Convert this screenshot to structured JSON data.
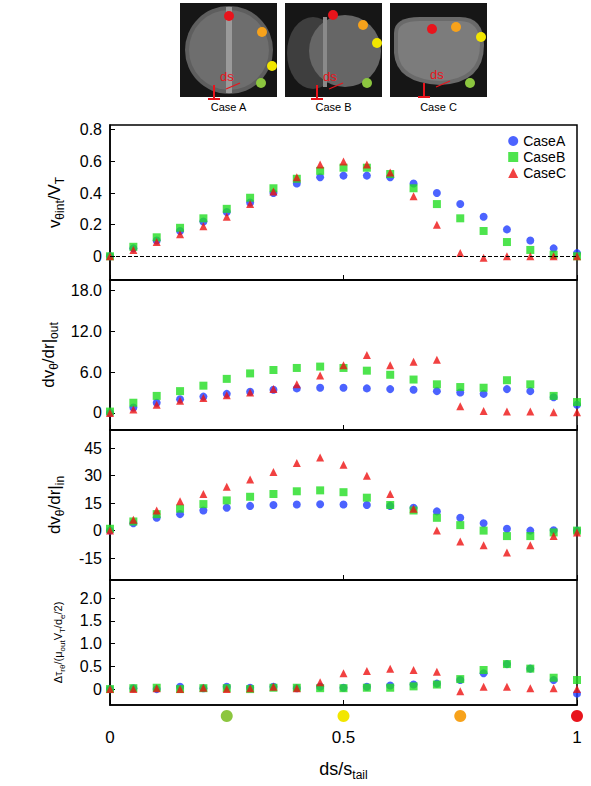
{
  "images": [
    {
      "caption": "Case A",
      "label": "ds"
    },
    {
      "caption": "Case B",
      "label": "ds"
    },
    {
      "caption": "Case C",
      "label": "ds"
    }
  ],
  "chart_data": [
    {
      "type": "scatter",
      "ylabel": [
        {
          "text": "v"
        },
        {
          "text": "θint",
          "sub": true
        },
        {
          "text": "/V"
        },
        {
          "text": "T",
          "sub": true
        }
      ],
      "x": [
        0,
        0.05,
        0.1,
        0.15,
        0.2,
        0.25,
        0.3,
        0.35,
        0.4,
        0.45,
        0.5,
        0.55,
        0.6,
        0.65,
        0.7,
        0.75,
        0.8,
        0.85,
        0.9,
        0.95,
        1
      ],
      "xlim": [
        0,
        1
      ],
      "xticks": [
        0,
        0.5,
        1
      ],
      "ylim": [
        -0.15,
        0.83
      ],
      "yticks": [
        0,
        0.2,
        0.4,
        0.6,
        0.8
      ],
      "hlines": [
        0
      ],
      "grid": false,
      "legend": "upper right",
      "tick_labels": "y",
      "series": [
        {
          "name": "CaseA",
          "color": "#1f3cff",
          "marker": "circle",
          "values": [
            0,
            0.05,
            0.1,
            0.16,
            0.22,
            0.28,
            0.34,
            0.4,
            0.46,
            0.5,
            0.51,
            0.51,
            0.5,
            0.46,
            0.4,
            0.33,
            0.25,
            0.17,
            0.1,
            0.05,
            0.02
          ]
        },
        {
          "name": "CaseB",
          "color": "#22dd22",
          "marker": "square",
          "values": [
            0,
            0.06,
            0.12,
            0.18,
            0.24,
            0.3,
            0.37,
            0.43,
            0.49,
            0.54,
            0.56,
            0.56,
            0.52,
            0.43,
            0.33,
            0.24,
            0.16,
            0.09,
            0.04,
            0.01,
            0
          ]
        },
        {
          "name": "CaseC",
          "color": "#ee1111",
          "marker": "triangle",
          "values": [
            0,
            0.04,
            0.09,
            0.14,
            0.19,
            0.25,
            0.33,
            0.41,
            0.5,
            0.58,
            0.6,
            0.58,
            0.53,
            0.38,
            0.2,
            0.02,
            -0.01,
            0,
            0,
            0,
            0
          ]
        }
      ]
    },
    {
      "type": "scatter",
      "ylabel": [
        {
          "text": "dv"
        },
        {
          "text": "θ",
          "sub": true
        },
        {
          "text": "/dr|"
        },
        {
          "text": "out",
          "sub": true
        }
      ],
      "x": [
        0,
        0.05,
        0.1,
        0.15,
        0.2,
        0.25,
        0.3,
        0.35,
        0.4,
        0.45,
        0.5,
        0.55,
        0.6,
        0.65,
        0.7,
        0.75,
        0.8,
        0.85,
        0.9,
        0.95,
        1
      ],
      "xlim": [
        0,
        1
      ],
      "xticks": [
        0,
        0.5,
        1
      ],
      "ylim": [
        -2.5,
        19.5
      ],
      "yticks": [
        0,
        {
          "value": 6,
          "label": "6.0"
        },
        {
          "value": 12,
          "label": "12.0"
        },
        {
          "value": 18,
          "label": "18.0"
        }
      ],
      "grid": false,
      "tick_labels": "y",
      "series": [
        {
          "name": "CaseA",
          "color": "#1f3cff",
          "marker": "circle",
          "values": [
            0,
            0.8,
            1.5,
            2,
            2.4,
            2.8,
            3.1,
            3.4,
            3.6,
            3.7,
            3.7,
            3.6,
            3.5,
            3.4,
            3.2,
            3,
            2.8,
            3.5,
            3.2,
            2.3,
            1.2
          ]
        },
        {
          "name": "CaseB",
          "color": "#22dd22",
          "marker": "square",
          "values": [
            0.2,
            1.5,
            2.5,
            3.2,
            4,
            5,
            5.8,
            6.3,
            6.6,
            6.8,
            6.6,
            6.2,
            5.6,
            4.9,
            4.2,
            3.8,
            3.7,
            4.8,
            4.2,
            2.5,
            1.6
          ]
        },
        {
          "name": "CaseC",
          "color": "#ee1111",
          "marker": "triangle",
          "values": [
            0,
            0.5,
            1.2,
            1.8,
            2.2,
            2.6,
            3,
            3.5,
            4.2,
            5.5,
            7,
            8.5,
            7,
            7.5,
            7.8,
            1,
            0.3,
            0.2,
            0.2,
            0.1,
            0.1
          ]
        }
      ]
    },
    {
      "type": "scatter",
      "ylabel": [
        {
          "text": "dv"
        },
        {
          "text": "θ",
          "sub": true
        },
        {
          "text": "/dr|"
        },
        {
          "text": "in",
          "sub": true
        }
      ],
      "x": [
        0,
        0.05,
        0.1,
        0.15,
        0.2,
        0.25,
        0.3,
        0.35,
        0.4,
        0.45,
        0.5,
        0.55,
        0.6,
        0.65,
        0.7,
        0.75,
        0.8,
        0.85,
        0.9,
        0.95,
        1
      ],
      "xlim": [
        0,
        1
      ],
      "xticks": [
        0,
        0.5,
        1
      ],
      "ylim": [
        -27,
        55
      ],
      "yticks": [
        -15,
        0,
        15,
        30,
        45
      ],
      "grid": false,
      "tick_labels": "y",
      "series": [
        {
          "name": "CaseA",
          "color": "#1f3cff",
          "marker": "circle",
          "values": [
            0,
            4,
            7,
            9,
            11,
            12.5,
            13.5,
            14,
            14.3,
            14.4,
            14.3,
            14,
            13.5,
            12.5,
            10.5,
            7,
            4,
            1,
            0,
            0.2,
            0
          ]
        },
        {
          "name": "CaseB",
          "color": "#22dd22",
          "marker": "square",
          "values": [
            1,
            5,
            9,
            12,
            14.5,
            16.5,
            18.5,
            20,
            21.5,
            22,
            21,
            18,
            14,
            11,
            7,
            3,
            0,
            -3,
            -3,
            -1,
            0
          ]
        },
        {
          "name": "CaseC",
          "color": "#ee1111",
          "marker": "triangle",
          "values": [
            0,
            6,
            11,
            16,
            20,
            24,
            28,
            32,
            37,
            40,
            36,
            30,
            20,
            12,
            0,
            -6,
            -8,
            -12,
            -8,
            -3,
            -1
          ]
        }
      ]
    },
    {
      "type": "scatter",
      "ylabel": [
        {
          "text": "Δτ"
        },
        {
          "text": "rθ",
          "sub": true
        },
        {
          "text": "/(μ"
        },
        {
          "text": "out",
          "sub": true
        },
        {
          "text": "V"
        },
        {
          "text": "T",
          "sub": true
        },
        {
          "text": "/d"
        },
        {
          "text": "e",
          "sub": true
        },
        {
          "text": "/2)"
        }
      ],
      "xlabel": [
        {
          "text": "ds/s"
        },
        {
          "text": "tail",
          "sub": true
        }
      ],
      "x": [
        0,
        0.05,
        0.1,
        0.15,
        0.2,
        0.25,
        0.3,
        0.35,
        0.4,
        0.45,
        0.5,
        0.55,
        0.6,
        0.65,
        0.7,
        0.75,
        0.8,
        0.85,
        0.9,
        0.95,
        1
      ],
      "xlim": [
        0,
        1
      ],
      "xticks": [
        0,
        0.5,
        1
      ],
      "ylim": [
        -0.35,
        2.4
      ],
      "yticks": [
        0,
        0.5,
        {
          "value": 1,
          "label": "1.0"
        },
        1.5,
        {
          "value": 2,
          "label": "2.0"
        }
      ],
      "grid": false,
      "markers": [
        {
          "x": 0.25,
          "color": "#8cc63f"
        },
        {
          "x": 0.5,
          "color": "#f2e600"
        },
        {
          "x": 0.75,
          "color": "#f7a21b"
        },
        {
          "x": 1,
          "color": "#e8141c"
        }
      ],
      "series": [
        {
          "name": "CaseA",
          "color": "#1f3cff",
          "marker": "circle",
          "values": [
            0,
            0.02,
            0,
            0.05,
            0.02,
            0.05,
            0.03,
            0.05,
            0.02,
            0.05,
            0.03,
            0.05,
            0.08,
            0.1,
            0.12,
            0.2,
            0.35,
            0.55,
            0.45,
            0.2,
            -0.1
          ]
        },
        {
          "name": "CaseB",
          "color": "#22dd22",
          "marker": "square",
          "values": [
            0,
            0.02,
            0.03,
            0,
            0.02,
            0.02,
            0,
            0.03,
            0.03,
            0.02,
            0.02,
            0.03,
            0.03,
            0.06,
            0.1,
            0.22,
            0.42,
            0.55,
            0.45,
            0.25,
            0.2
          ]
        },
        {
          "name": "CaseC",
          "color": "#ee1111",
          "marker": "triangle",
          "values": [
            0,
            0,
            0.02,
            0,
            0.03,
            0,
            0.02,
            0.05,
            0.02,
            0.15,
            0.35,
            0.4,
            0.45,
            0.42,
            0.38,
            -0.05,
            0.05,
            0.05,
            0.02,
            0.02,
            0
          ]
        }
      ]
    }
  ]
}
